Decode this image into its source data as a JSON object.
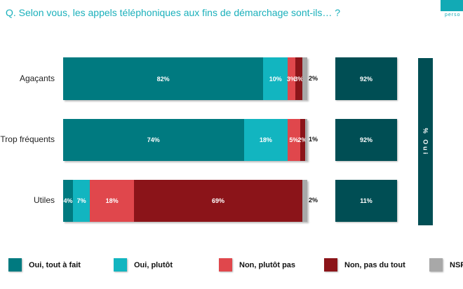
{
  "chart_data": {
    "type": "bar",
    "orientation": "horizontal",
    "stacked": true,
    "title": "Q. Selon vous, les appels téléphoniques aux fins de démarchage sont-ils… ?",
    "categories": [
      "Agaçants",
      "Trop fréquents",
      "Utiles"
    ],
    "series": [
      {
        "name": "Oui, tout à fait",
        "color": "#007a80",
        "values": [
          82,
          74,
          4
        ]
      },
      {
        "name": "Oui, plutôt",
        "color": "#12b5c0",
        "values": [
          10,
          18,
          7
        ]
      },
      {
        "name": "Non, plutôt pas",
        "color": "#e0474c",
        "values": [
          3,
          5,
          18
        ]
      },
      {
        "name": "Non, pas du tout",
        "color": "#8b1419",
        "values": [
          3,
          2,
          69
        ]
      },
      {
        "name": "NSP",
        "color": "#a8a8a8",
        "values": [
          2,
          1,
          2
        ]
      }
    ],
    "totals": {
      "label": "% Oui",
      "values": [
        92,
        92,
        11
      ]
    },
    "xlim": [
      0,
      100
    ],
    "legend": "bottom",
    "grid": false
  },
  "logo": {
    "text": "perso"
  }
}
